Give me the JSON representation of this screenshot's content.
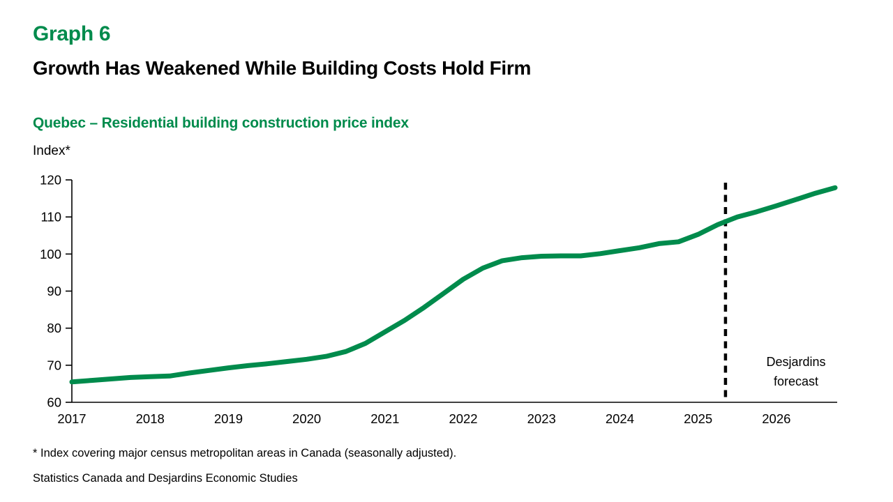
{
  "header": {
    "graph_label": "Graph 6",
    "title": "Growth Has Weakened While Building Costs Hold Firm",
    "subtitle": "Quebec – Residential building construction price index",
    "axis_unit_label": "Index*"
  },
  "chart_data": {
    "type": "line",
    "title": "Quebec – Residential building construction price index",
    "xlabel": "",
    "ylabel": "Index*",
    "ylim": [
      60,
      120
    ],
    "y_ticks": [
      60,
      70,
      80,
      90,
      100,
      110,
      120
    ],
    "x_tick_labels": [
      "2017",
      "2018",
      "2019",
      "2020",
      "2021",
      "2022",
      "2023",
      "2024",
      "2025",
      "2026"
    ],
    "x_tick_positions": [
      2017,
      2018,
      2019,
      2020,
      2021,
      2022,
      2023,
      2024,
      2025,
      2026
    ],
    "grid": false,
    "legend_position": "none",
    "forecast_divider_x": 2025.35,
    "annotation": {
      "text": "Desjardins\nforecast"
    },
    "series": [
      {
        "name": "Quebec residential building construction price index",
        "color": "#008B4C",
        "x": [
          2017.0,
          2017.25,
          2017.5,
          2017.75,
          2018.0,
          2018.25,
          2018.5,
          2018.75,
          2019.0,
          2019.25,
          2019.5,
          2019.75,
          2020.0,
          2020.25,
          2020.5,
          2020.75,
          2021.0,
          2021.25,
          2021.5,
          2021.75,
          2022.0,
          2022.25,
          2022.5,
          2022.75,
          2023.0,
          2023.25,
          2023.5,
          2023.75,
          2024.0,
          2024.25,
          2024.5,
          2024.75,
          2025.0,
          2025.25,
          2025.5,
          2025.75,
          2026.0,
          2026.25,
          2026.5,
          2026.75
        ],
        "values": [
          65.5,
          65.9,
          66.3,
          66.7,
          66.9,
          67.1,
          67.9,
          68.6,
          69.3,
          69.9,
          70.4,
          71.0,
          71.6,
          72.4,
          73.7,
          75.9,
          79.0,
          82.1,
          85.6,
          89.4,
          93.2,
          96.2,
          98.2,
          99.0,
          99.4,
          99.5,
          99.5,
          100.1,
          100.9,
          101.7,
          102.8,
          103.3,
          105.3,
          107.9,
          110.0,
          111.4,
          113.0,
          114.7,
          116.4,
          117.9
        ]
      }
    ]
  },
  "footnotes": {
    "note": "* Index covering major census metropolitan areas in Canada (seasonally adjusted).",
    "source": "Statistics Canada and Desjardins Economic Studies"
  },
  "colors": {
    "accent_green": "#008B4C",
    "axis_black": "#000000",
    "forecast_line_black": "#000000"
  }
}
